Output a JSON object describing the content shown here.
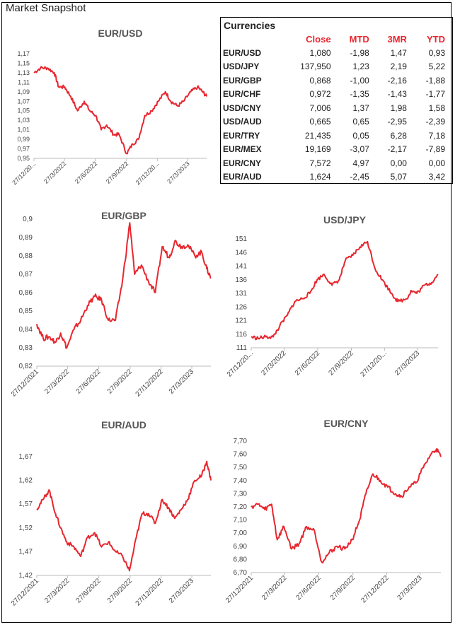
{
  "page": {
    "title": "Market Snapshot"
  },
  "currencies": {
    "caption": "Currencies",
    "headers": [
      "Close",
      "MTD",
      "3MR",
      "YTD"
    ],
    "rows": [
      {
        "pair": "EUR/USD",
        "close": "1,080",
        "mtd": "-1,98",
        "r3m": "1,47",
        "ytd": "0,93"
      },
      {
        "pair": "USD/JPY",
        "close": "137,950",
        "mtd": "1,23",
        "r3m": "2,19",
        "ytd": "5,22"
      },
      {
        "pair": "EUR/GBP",
        "close": "0,868",
        "mtd": "-1,00",
        "r3m": "-2,16",
        "ytd": "-1,88"
      },
      {
        "pair": "EUR/CHF",
        "close": "0,972",
        "mtd": "-1,35",
        "r3m": "-1,43",
        "ytd": "-1,77"
      },
      {
        "pair": "USD/CNY",
        "close": "7,006",
        "mtd": "1,37",
        "r3m": "1,98",
        "ytd": "1,58"
      },
      {
        "pair": "USD/AUD",
        "close": "0,665",
        "mtd": "0,65",
        "r3m": "-2,95",
        "ytd": "-2,39"
      },
      {
        "pair": "EUR/TRY",
        "close": "21,435",
        "mtd": "0,05",
        "r3m": "6,28",
        "ytd": "7,18"
      },
      {
        "pair": "EUR/MEX",
        "close": "19,169",
        "mtd": "-3,07",
        "r3m": "-2,17",
        "ytd": "-7,89"
      },
      {
        "pair": "EUR/CNY",
        "close": "7,572",
        "mtd": "4,97",
        "r3m": "0,00",
        "ytd": "0,00"
      },
      {
        "pair": "EUR/AUD",
        "close": "1,624",
        "mtd": "-2,45",
        "r3m": "5,07",
        "ytd": "3,42"
      }
    ]
  },
  "chart_data": [
    {
      "id": "eurusd",
      "type": "line",
      "title": "EUR/USD",
      "xlabel": "",
      "ylabel": "",
      "line_color": "#e8262e",
      "grid": false,
      "legend": "none",
      "ylim": [
        0.95,
        1.17
      ],
      "yticks": [
        "1,17",
        "1,15",
        "1,13",
        "1,11",
        "1,09",
        "1,07",
        "1,05",
        "1,03",
        "1,01",
        "0,99",
        "0,97",
        "0,95"
      ],
      "ytick_values": [
        1.17,
        1.15,
        1.13,
        1.11,
        1.09,
        1.07,
        1.05,
        1.03,
        1.01,
        0.99,
        0.97,
        0.95
      ],
      "xticks": [
        "27/12/20...",
        "27/3/2022",
        "27/6/2022",
        "27/9/2022",
        "27/12/20...",
        "27/3/2023"
      ],
      "x": [
        "2021-12-27",
        "2022-01-15",
        "2022-02-05",
        "2022-02-25",
        "2022-03-10",
        "2022-03-28",
        "2022-04-15",
        "2022-05-05",
        "2022-05-25",
        "2022-06-10",
        "2022-06-28",
        "2022-07-14",
        "2022-07-30",
        "2022-08-20",
        "2022-09-05",
        "2022-09-27",
        "2022-10-15",
        "2022-11-01",
        "2022-11-20",
        "2022-12-10",
        "2022-12-30",
        "2023-01-20",
        "2023-02-05",
        "2023-02-25",
        "2023-03-15",
        "2023-04-05",
        "2023-04-25",
        "2023-05-10",
        "2023-05-22"
      ],
      "values": [
        1.13,
        1.14,
        1.14,
        1.13,
        1.1,
        1.1,
        1.08,
        1.05,
        1.07,
        1.05,
        1.04,
        1.01,
        1.02,
        1.0,
        1.0,
        0.96,
        0.98,
        0.99,
        1.04,
        1.05,
        1.07,
        1.09,
        1.07,
        1.06,
        1.07,
        1.09,
        1.1,
        1.09,
        1.08
      ]
    },
    {
      "id": "eurgbp",
      "type": "line",
      "title": "EUR/GBP",
      "xlabel": "",
      "ylabel": "",
      "line_color": "#e8262e",
      "grid": false,
      "legend": "none",
      "ylim": [
        0.82,
        0.9
      ],
      "yticks": [
        "0,9",
        "0,89",
        "0,88",
        "0,87",
        "0,86",
        "0,85",
        "0,84",
        "0,83",
        "0,82"
      ],
      "ytick_values": [
        0.9,
        0.89,
        0.88,
        0.87,
        0.86,
        0.85,
        0.84,
        0.83,
        0.82
      ],
      "xticks": [
        "27/12/2021",
        "27/3/2022",
        "27/6/2022",
        "27/9/2022",
        "27/12/2022",
        "27/3/2023"
      ],
      "x": [
        "2021-12-27",
        "2022-01-15",
        "2022-02-01",
        "2022-02-20",
        "2022-03-07",
        "2022-03-25",
        "2022-04-15",
        "2022-05-05",
        "2022-05-25",
        "2022-06-15",
        "2022-07-05",
        "2022-07-25",
        "2022-08-15",
        "2022-09-05",
        "2022-09-26",
        "2022-10-10",
        "2022-10-30",
        "2022-11-20",
        "2022-12-10",
        "2022-12-30",
        "2023-01-20",
        "2023-02-05",
        "2023-02-25",
        "2023-03-15",
        "2023-04-05",
        "2023-04-25",
        "2023-05-10",
        "2023-05-22"
      ],
      "values": [
        0.843,
        0.835,
        0.836,
        0.833,
        0.838,
        0.83,
        0.84,
        0.845,
        0.853,
        0.858,
        0.856,
        0.845,
        0.845,
        0.867,
        0.898,
        0.87,
        0.875,
        0.866,
        0.86,
        0.885,
        0.879,
        0.888,
        0.885,
        0.886,
        0.88,
        0.882,
        0.873,
        0.868
      ]
    },
    {
      "id": "usdjpy",
      "type": "line",
      "title": "USD/JPY",
      "xlabel": "",
      "ylabel": "",
      "line_color": "#e8262e",
      "grid": false,
      "legend": "none",
      "ylim": [
        111,
        151
      ],
      "yticks": [
        "151",
        "146",
        "141",
        "136",
        "131",
        "126",
        "121",
        "116",
        "111"
      ],
      "ytick_values": [
        151,
        146,
        141,
        136,
        131,
        126,
        121,
        116,
        111
      ],
      "xticks": [
        "27/12/20...",
        "27/3/2022",
        "27/6/2022",
        "27/9/2022",
        "27/12/20...",
        "27/3/2023"
      ],
      "x": [
        "2021-12-27",
        "2022-01-15",
        "2022-02-05",
        "2022-02-25",
        "2022-03-15",
        "2022-04-05",
        "2022-04-25",
        "2022-05-15",
        "2022-06-05",
        "2022-06-25",
        "2022-07-14",
        "2022-08-05",
        "2022-08-25",
        "2022-09-10",
        "2022-10-01",
        "2022-10-20",
        "2022-11-10",
        "2022-12-01",
        "2022-12-20",
        "2023-01-15",
        "2023-02-01",
        "2023-02-25",
        "2023-03-10",
        "2023-03-25",
        "2023-04-15",
        "2023-05-05",
        "2023-05-22"
      ],
      "values": [
        115,
        114.5,
        115,
        115,
        119,
        123,
        128,
        129,
        131,
        136,
        138,
        134,
        136,
        143,
        145,
        148,
        150,
        140,
        136,
        131,
        128,
        129,
        132,
        131,
        134,
        135,
        138
      ]
    },
    {
      "id": "euraud",
      "type": "line",
      "title": "EUR/AUD",
      "xlabel": "",
      "ylabel": "",
      "line_color": "#e8262e",
      "grid": false,
      "legend": "none",
      "ylim": [
        1.42,
        1.67
      ],
      "yticks": [
        "1,67",
        "1,62",
        "1,57",
        "1,52",
        "1,47",
        "1,42"
      ],
      "ytick_values": [
        1.67,
        1.62,
        1.57,
        1.52,
        1.47,
        1.42
      ],
      "xticks": [
        "27/12/2021",
        "27/3/2022",
        "27/6/2022",
        "27/9/2022",
        "27/12/2022",
        "27/3/2023"
      ],
      "x": [
        "2021-12-27",
        "2022-01-15",
        "2022-02-01",
        "2022-02-20",
        "2022-03-07",
        "2022-03-25",
        "2022-04-15",
        "2022-05-05",
        "2022-05-25",
        "2022-06-15",
        "2022-07-05",
        "2022-07-25",
        "2022-08-15",
        "2022-09-05",
        "2022-09-25",
        "2022-10-15",
        "2022-11-01",
        "2022-11-20",
        "2022-12-10",
        "2022-12-30",
        "2023-01-20",
        "2023-02-05",
        "2023-02-25",
        "2023-03-15",
        "2023-04-05",
        "2023-04-25",
        "2023-05-10",
        "2023-05-22"
      ],
      "values": [
        1.56,
        1.58,
        1.6,
        1.55,
        1.52,
        1.49,
        1.48,
        1.46,
        1.5,
        1.51,
        1.48,
        1.49,
        1.47,
        1.46,
        1.43,
        1.5,
        1.55,
        1.55,
        1.53,
        1.58,
        1.56,
        1.54,
        1.56,
        1.58,
        1.62,
        1.63,
        1.66,
        1.62
      ]
    },
    {
      "id": "eurcny",
      "type": "line",
      "title": "EUR/CNY",
      "xlabel": "",
      "ylabel": "",
      "line_color": "#e8262e",
      "grid": false,
      "legend": "none",
      "ylim": [
        6.7,
        7.7
      ],
      "yticks": [
        "7,70",
        "7,60",
        "7,50",
        "7,40",
        "7,30",
        "7,20",
        "7,10",
        "7,00",
        "6,90",
        "6,80",
        "6,70"
      ],
      "ytick_values": [
        7.7,
        7.6,
        7.5,
        7.4,
        7.3,
        7.2,
        7.1,
        7.0,
        6.9,
        6.8,
        6.7
      ],
      "xticks": [
        "27/12/2021",
        "27/3/2022",
        "27/6/2022",
        "27/9/2022",
        "27/12/2022",
        "27/3/2023"
      ],
      "x": [
        "2021-12-27",
        "2022-01-15",
        "2022-02-01",
        "2022-02-20",
        "2022-03-07",
        "2022-03-25",
        "2022-04-15",
        "2022-05-05",
        "2022-05-25",
        "2022-06-15",
        "2022-07-05",
        "2022-07-25",
        "2022-08-15",
        "2022-09-05",
        "2022-09-25",
        "2022-10-15",
        "2022-11-01",
        "2022-11-20",
        "2022-12-10",
        "2022-12-30",
        "2023-01-20",
        "2023-02-05",
        "2023-02-25",
        "2023-03-15",
        "2023-04-05",
        "2023-04-25",
        "2023-05-10",
        "2023-05-22"
      ],
      "values": [
        7.2,
        7.22,
        7.18,
        7.22,
        6.95,
        7.05,
        6.88,
        6.92,
        7.05,
        7.02,
        6.78,
        6.85,
        6.9,
        6.88,
        6.95,
        7.1,
        7.3,
        7.45,
        7.4,
        7.35,
        7.3,
        7.28,
        7.35,
        7.38,
        7.5,
        7.6,
        7.64,
        7.58
      ]
    }
  ]
}
